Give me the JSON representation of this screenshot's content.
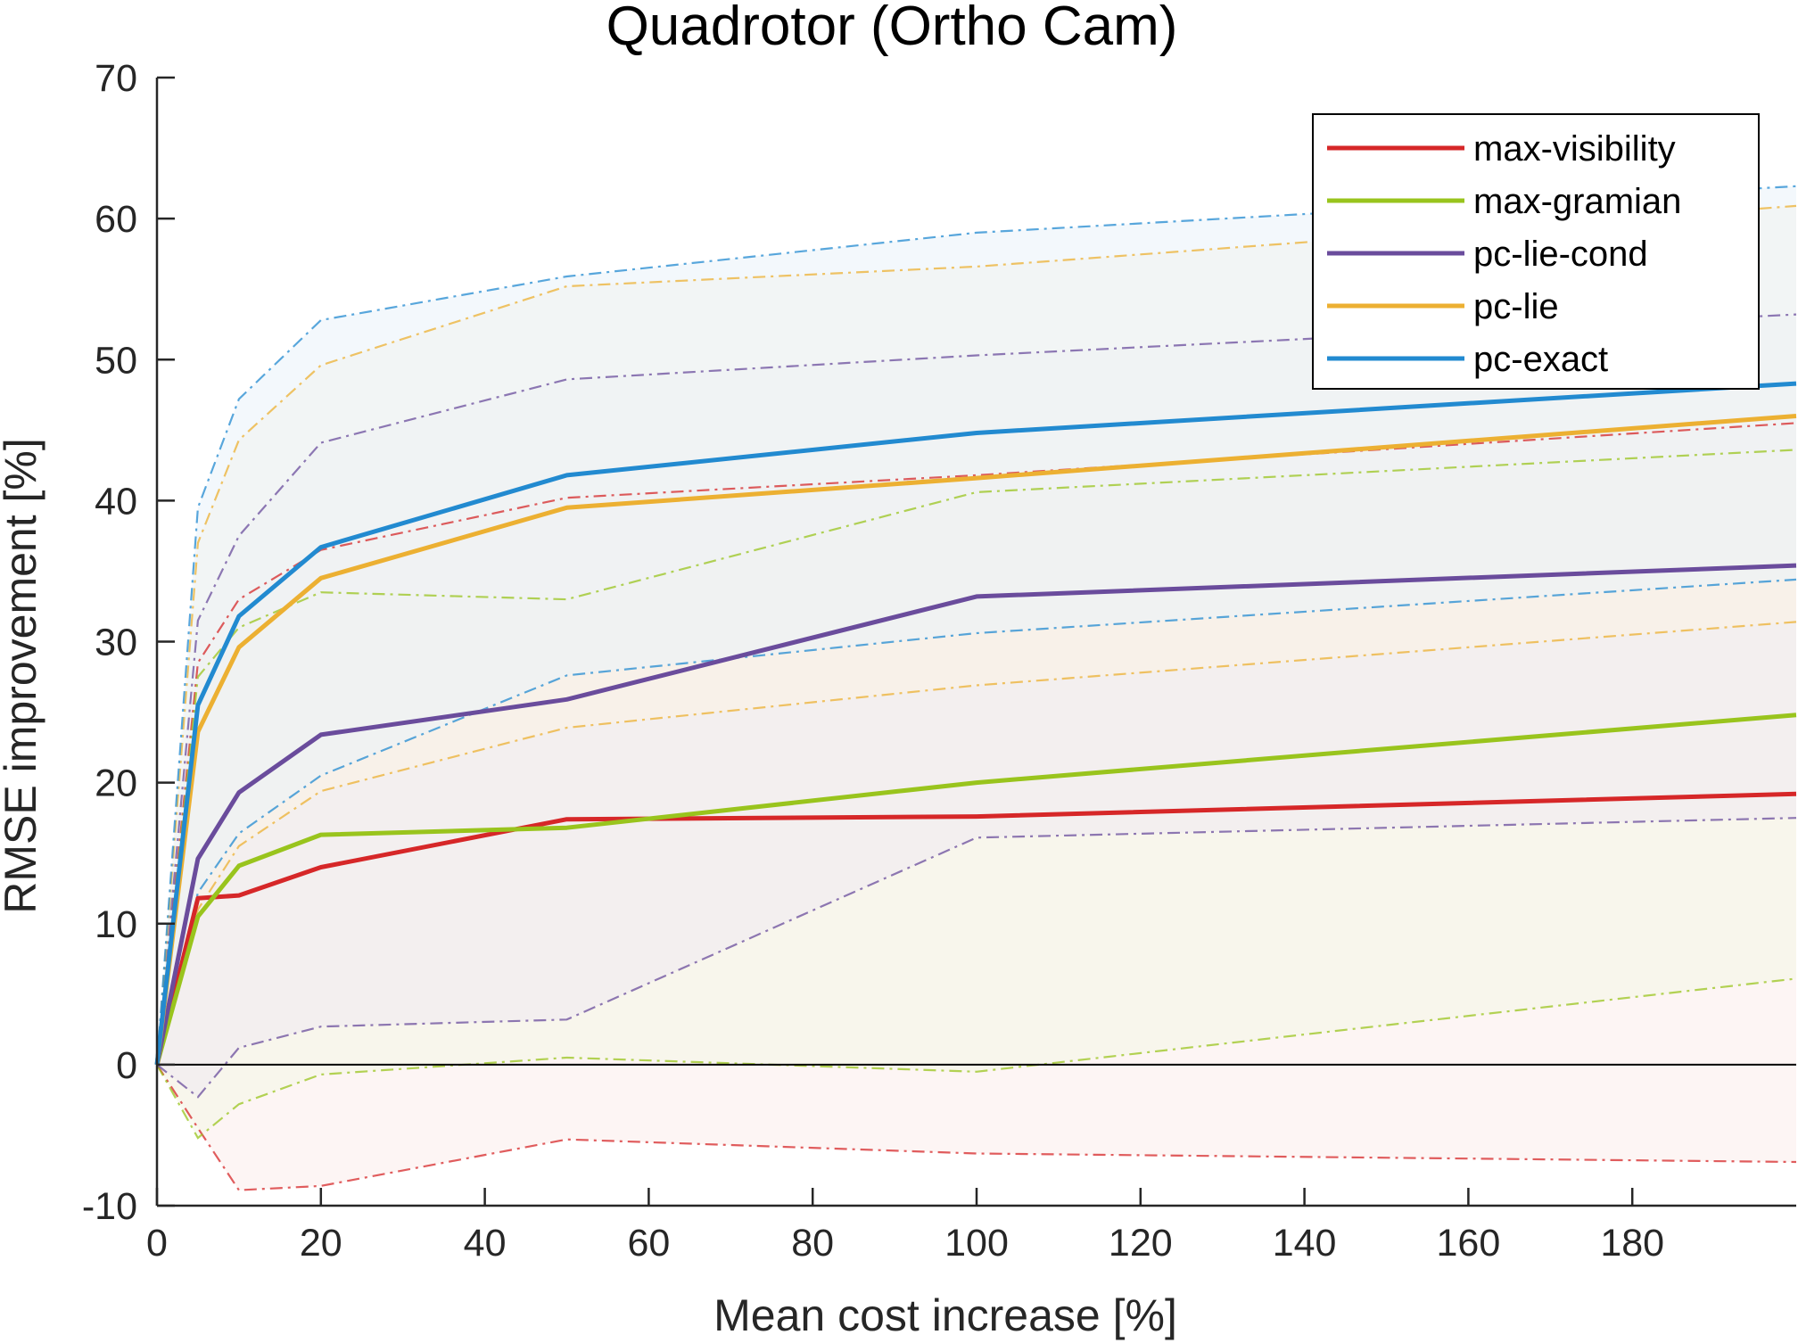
{
  "chart_data": {
    "type": "line",
    "title": "Quadrotor (Ortho Cam)",
    "xlabel": "Mean cost increase [%]",
    "ylabel": "RMSE improvement [%]",
    "xlim": [
      0,
      200
    ],
    "ylim": [
      -10,
      70
    ],
    "xticks": [
      0,
      20,
      40,
      60,
      80,
      100,
      120,
      140,
      160,
      180
    ],
    "yticks": [
      -10,
      0,
      10,
      20,
      30,
      40,
      50,
      60,
      70
    ],
    "x": [
      0,
      5,
      10,
      20,
      50,
      100,
      200
    ],
    "grid": false,
    "legend_position": "top-right",
    "series": [
      {
        "name": "max-visibility",
        "color": "#d62728",
        "fill": "#fbeceb",
        "values": [
          0,
          11.8,
          12.0,
          14.0,
          17.4,
          17.6,
          19.2
        ],
        "upper": [
          0,
          28.5,
          33.0,
          36.5,
          40.2,
          41.8,
          45.5
        ],
        "lower": [
          0,
          -4.5,
          -8.9,
          -8.6,
          -5.3,
          -6.3,
          -6.9
        ]
      },
      {
        "name": "max-gramian",
        "color": "#99c41d",
        "fill": "#f4f6e6",
        "values": [
          0,
          10.5,
          14.1,
          16.3,
          16.8,
          20.0,
          24.8
        ],
        "upper": [
          0,
          27.5,
          31.0,
          33.5,
          33.0,
          40.6,
          43.6
        ],
        "lower": [
          0,
          -5.2,
          -2.8,
          -0.7,
          0.5,
          -0.5,
          6.1
        ]
      },
      {
        "name": "pc-lie-cond",
        "color": "#6a4c9c",
        "fill": "#eeeaf2",
        "values": [
          0,
          14.6,
          19.3,
          23.4,
          25.9,
          33.2,
          35.4
        ],
        "upper": [
          0,
          31.5,
          37.5,
          44.1,
          48.6,
          50.3,
          53.2
        ],
        "lower": [
          0,
          -2.3,
          1.2,
          2.7,
          3.2,
          16.1,
          17.5
        ]
      },
      {
        "name": "pc-lie",
        "color": "#ecb032",
        "fill": "#fcf3e3",
        "values": [
          0,
          23.6,
          29.6,
          34.5,
          39.5,
          41.6,
          46.0
        ],
        "upper": [
          0,
          37.0,
          44.3,
          49.6,
          55.2,
          56.6,
          60.9
        ],
        "lower": [
          0,
          11.0,
          15.5,
          19.4,
          23.9,
          26.9,
          31.4
        ]
      },
      {
        "name": "pc-exact",
        "color": "#228ad0",
        "fill": "#e9f3fa",
        "values": [
          0,
          25.5,
          31.8,
          36.7,
          41.8,
          44.8,
          48.3
        ],
        "upper": [
          0,
          39.5,
          47.2,
          52.8,
          55.9,
          59.0,
          62.3
        ],
        "lower": [
          0,
          12.2,
          16.4,
          20.5,
          27.6,
          30.6,
          34.4
        ]
      }
    ]
  }
}
